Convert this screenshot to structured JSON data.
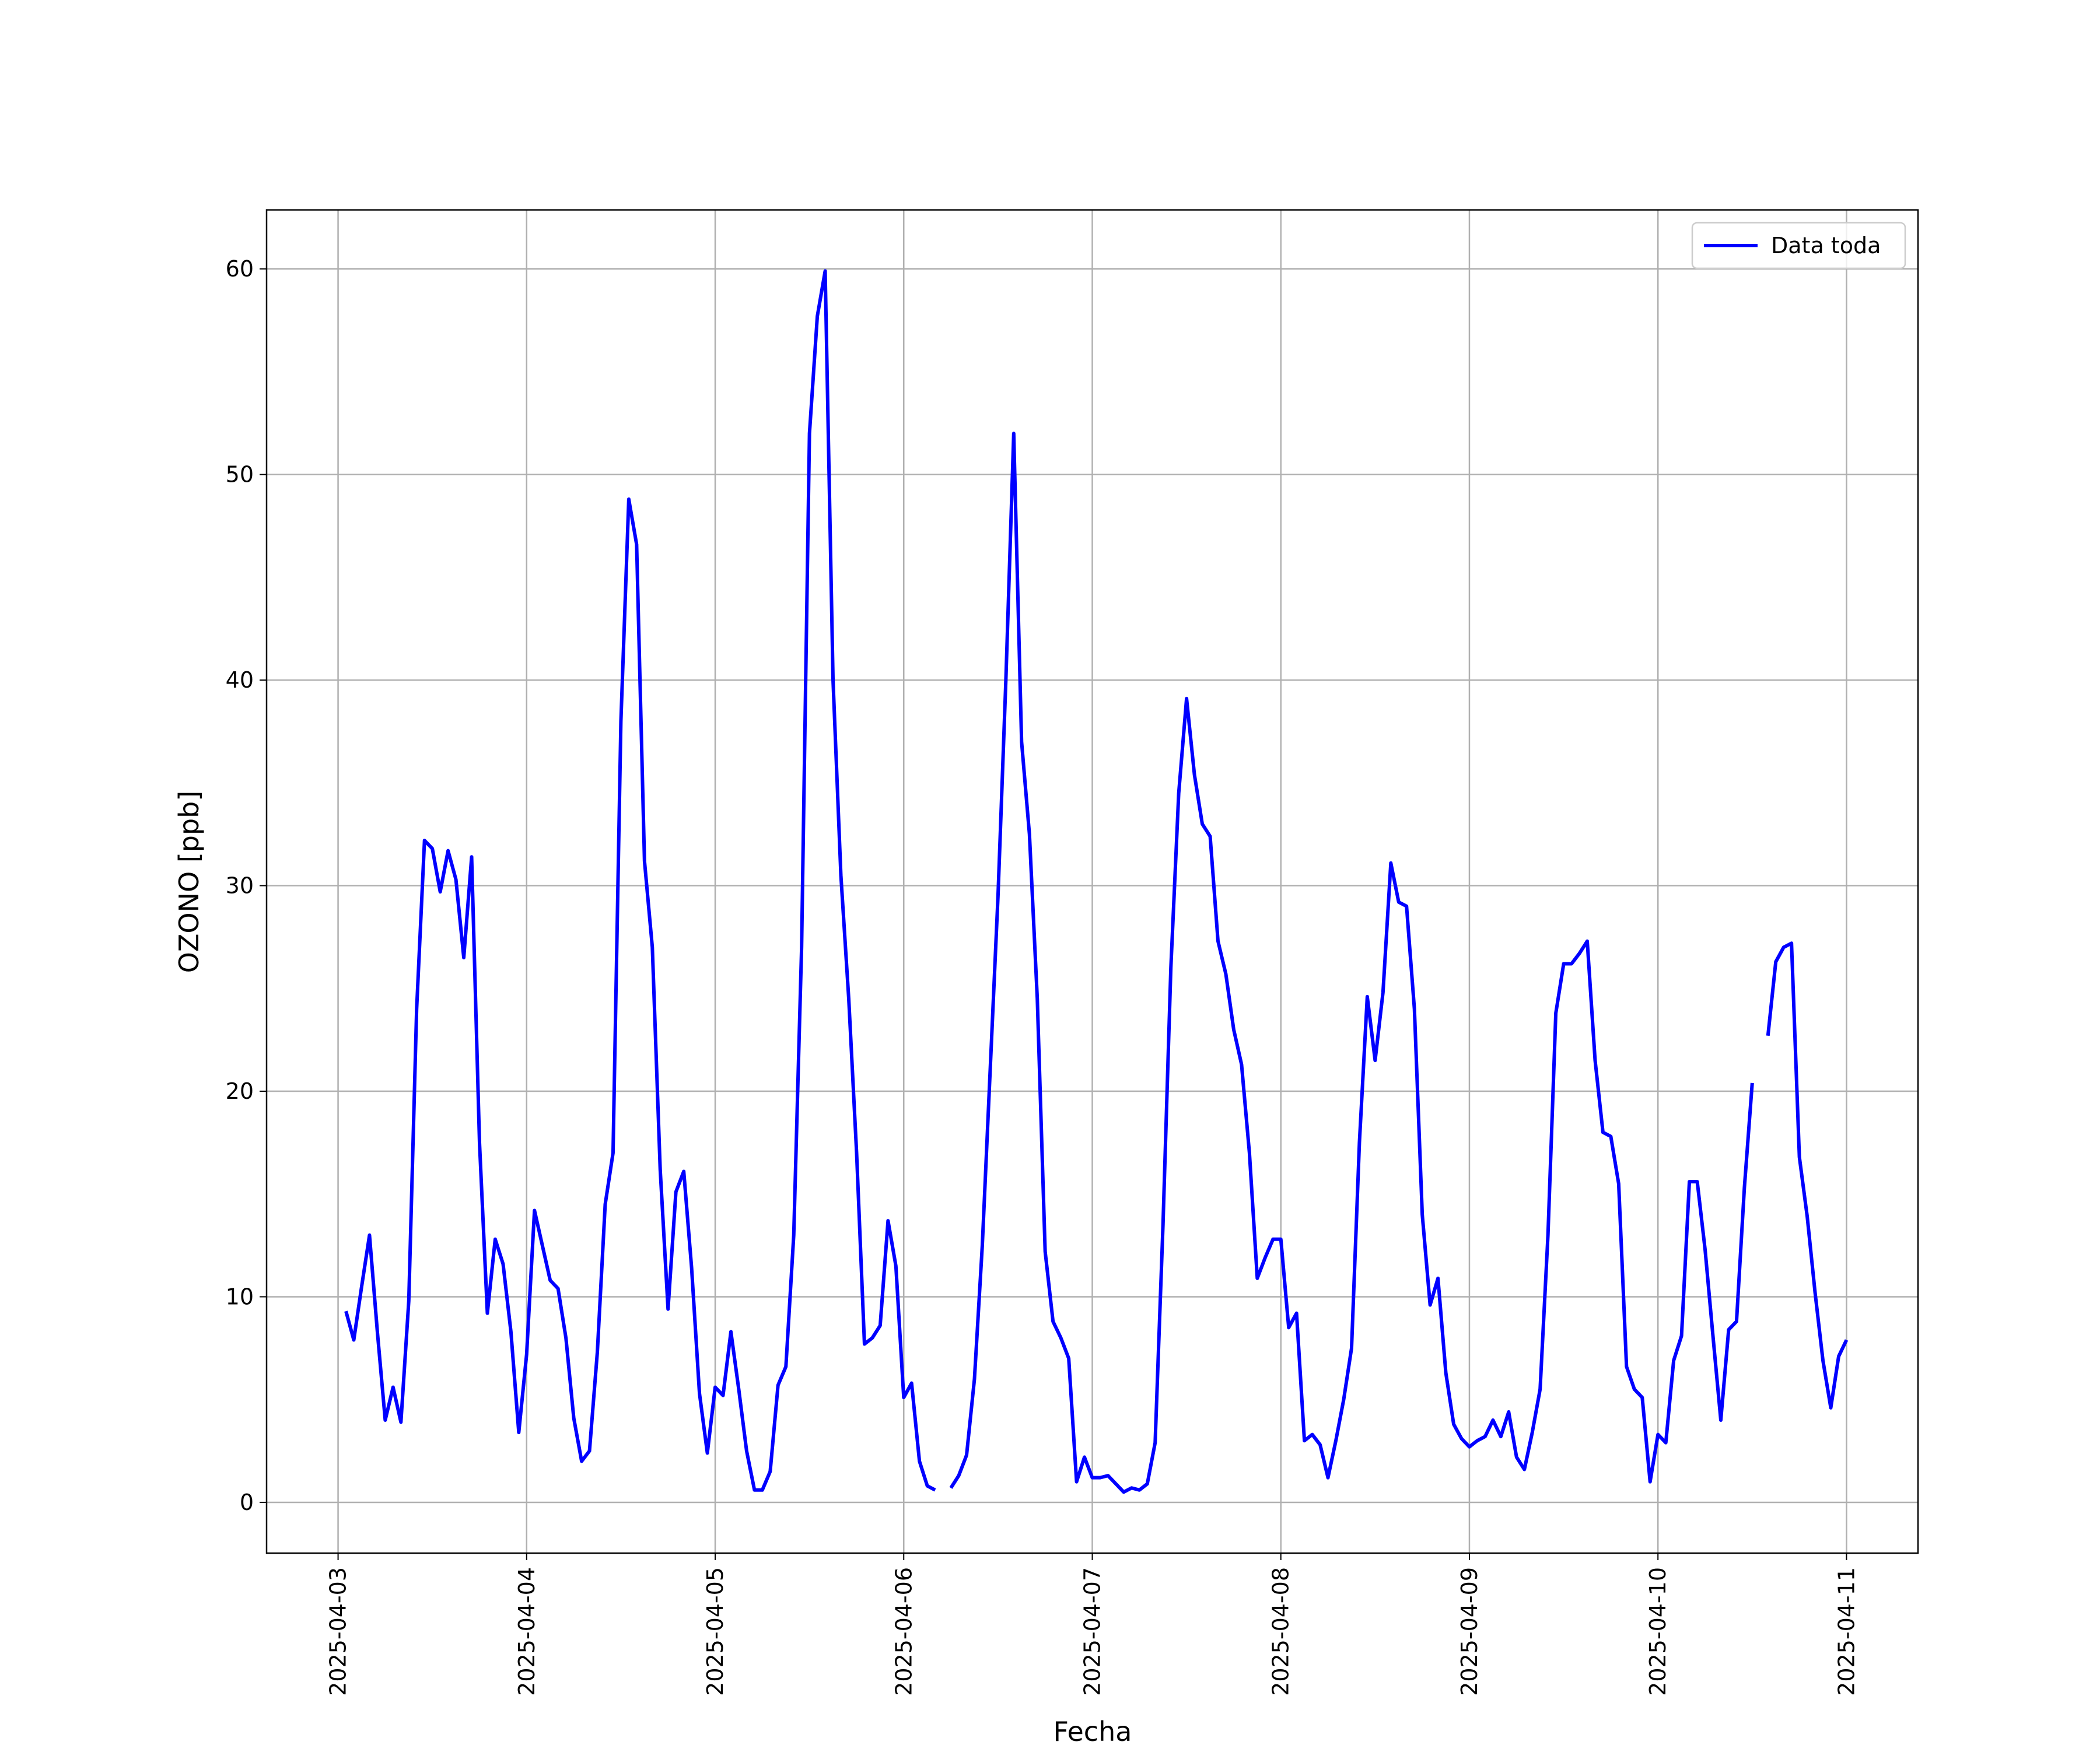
{
  "chart_data": {
    "type": "line",
    "xlabel": "Fecha",
    "ylabel": "OZONO [ppb]",
    "categories": [
      "2025-04-03",
      null,
      null,
      null,
      null,
      null,
      null,
      null,
      null,
      null,
      null,
      null,
      null,
      null,
      null,
      null,
      null,
      null,
      null,
      null,
      null,
      null,
      null,
      null,
      "2025-04-04",
      null,
      null,
      null,
      null,
      null,
      null,
      null,
      null,
      null,
      null,
      null,
      null,
      null,
      null,
      null,
      null,
      null,
      null,
      null,
      null,
      null,
      null,
      null,
      "2025-04-05",
      null,
      null,
      null,
      null,
      null,
      null,
      null,
      null,
      null,
      null,
      null,
      null,
      null,
      null,
      null,
      null,
      null,
      null,
      null,
      null,
      null,
      null,
      null,
      "2025-04-06",
      null,
      null,
      null,
      null,
      null,
      null,
      null,
      null,
      null,
      null,
      null,
      null,
      null,
      null,
      null,
      null,
      null,
      null,
      null,
      null,
      null,
      null,
      null,
      "2025-04-07",
      null,
      null,
      null,
      null,
      null,
      null,
      null,
      null,
      null,
      null,
      null,
      null,
      null,
      null,
      null,
      null,
      null,
      null,
      null,
      null,
      null,
      null,
      null,
      "2025-04-08",
      null,
      null,
      null,
      null,
      null,
      null,
      null,
      null,
      null,
      null,
      null,
      null,
      null,
      null,
      null,
      null,
      null,
      null,
      null,
      null,
      null,
      null,
      null,
      "2025-04-09",
      null,
      null,
      null,
      null,
      null,
      null,
      null,
      null,
      null,
      null,
      null,
      null,
      null,
      null,
      null,
      null,
      null,
      null,
      null,
      null,
      null,
      null,
      null,
      "2025-04-10",
      null,
      null,
      null,
      null,
      null,
      null,
      null,
      null,
      null,
      null,
      null,
      null,
      null,
      null,
      null,
      null,
      null,
      null,
      null,
      null,
      null,
      null,
      null,
      "2025-04-11"
    ],
    "series": [
      {
        "name": "Data toda",
        "color": "#0000ff",
        "values": [
          null,
          9.3,
          7.9,
          10.5,
          13.0,
          8.3,
          4.0,
          5.6,
          3.9,
          9.8,
          24.0,
          32.2,
          31.8,
          29.7,
          31.7,
          30.3,
          26.5,
          31.4,
          17.5,
          9.2,
          12.8,
          11.6,
          8.3,
          3.4,
          7.2,
          14.2,
          12.5,
          10.8,
          10.4,
          8.0,
          4.1,
          2.0,
          2.5,
          7.3,
          14.5,
          17.0,
          38.0,
          48.8,
          46.6,
          31.2,
          27.0,
          16.2,
          9.4,
          15.1,
          16.1,
          11.4,
          5.3,
          2.4,
          5.6,
          5.2,
          8.3,
          5.5,
          2.5,
          0.6,
          0.6,
          1.5,
          5.7,
          6.6,
          13.0,
          27.0,
          52.0,
          57.7,
          59.9,
          40.0,
          30.5,
          24.5,
          17.0,
          7.7,
          8.0,
          8.6,
          13.7,
          11.5,
          5.1,
          5.8,
          2.0,
          0.8,
          0.6,
          null,
          0.7,
          1.3,
          2.3,
          6.0,
          12.5,
          21.0,
          29.5,
          40.0,
          52.0,
          37.0,
          32.5,
          24.5,
          12.2,
          8.8,
          8.0,
          7.0,
          1.0,
          2.2,
          1.2,
          1.2,
          1.3,
          0.9,
          0.5,
          0.7,
          0.6,
          0.9,
          2.9,
          13.5,
          26.0,
          34.5,
          39.1,
          35.4,
          33.0,
          32.4,
          27.3,
          25.7,
          23.0,
          21.3,
          17.0,
          10.9,
          11.9,
          12.8,
          12.8,
          8.5,
          9.2,
          3.0,
          3.3,
          2.8,
          1.2,
          3.0,
          5.0,
          7.5,
          17.5,
          24.6,
          21.5,
          24.8,
          31.1,
          29.2,
          29.0,
          24.0,
          14.0,
          9.6,
          10.9,
          6.3,
          3.8,
          3.1,
          2.7,
          3.0,
          3.2,
          4.0,
          3.2,
          4.4,
          2.2,
          1.6,
          3.4,
          5.5,
          13.0,
          23.8,
          26.2,
          26.2,
          26.7,
          27.3,
          21.5,
          18.0,
          17.8,
          15.5,
          6.6,
          5.5,
          5.1,
          1.0,
          3.3,
          2.9,
          6.9,
          8.1,
          15.6,
          15.6,
          12.3,
          8.1,
          4.0,
          8.4,
          8.8,
          15.3,
          20.4,
          null,
          22.7,
          26.3,
          27.0,
          27.2,
          16.8,
          13.9,
          10.2,
          6.9,
          4.6,
          7.1,
          7.9
        ]
      }
    ],
    "ylim": [
      -2.47,
      62.87
    ],
    "yticks": [
      0,
      10,
      20,
      30,
      40,
      50,
      60
    ],
    "grid": true,
    "legend": "upper right"
  }
}
